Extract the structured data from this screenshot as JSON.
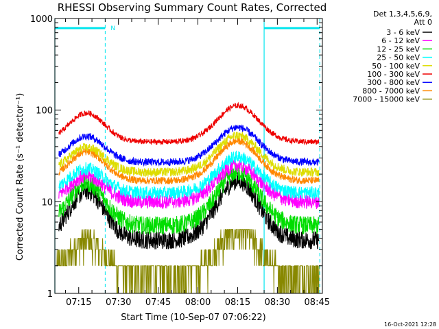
{
  "chart_data": {
    "type": "line",
    "title": "RHESSI Observing Summary Count Rates, Corrected",
    "ylabel": "Corrected Count Rate (s⁻¹ detector⁻¹)",
    "xlabel": "Start Time (10-Sep-07 07:06:22)",
    "timestamp": "16-Oct-2021 12:28",
    "y_scale": "log",
    "ylim": [
      1,
      1000
    ],
    "xlim": [
      "07:06",
      "08:47"
    ],
    "y_ticks": [
      {
        "label": "1",
        "value": 1
      },
      {
        "label": "10",
        "value": 10
      },
      {
        "label": "100",
        "value": 100
      },
      {
        "label": "1000",
        "value": 1000
      }
    ],
    "x_ticks": [
      {
        "label": "07:15",
        "value": "07:15"
      },
      {
        "label": "07:30",
        "value": "07:30"
      },
      {
        "label": "07:45",
        "value": "07:45"
      },
      {
        "label": "08:00",
        "value": "08:00"
      },
      {
        "label": "08:15",
        "value": "08:15"
      },
      {
        "label": "08:30",
        "value": "08:30"
      },
      {
        "label": "08:45",
        "value": "08:45"
      }
    ],
    "legend_header": [
      "Det 1,3,4,5,6,9,",
      "Att 0"
    ],
    "legend_placement": "right",
    "flags": {
      "color": "#00e5ee",
      "night_bars": [
        {
          "start": "07:06",
          "end": "07:25"
        },
        {
          "start": "08:25",
          "end": "08:46"
        }
      ],
      "dashed_lines": [
        "07:25",
        "08:46"
      ],
      "solid_lines": [
        "07:06",
        "08:25"
      ],
      "marker": {
        "label": "N",
        "time": "07:25"
      }
    },
    "series": [
      {
        "name": "3 - 6 keV",
        "color": "#000000",
        "base": 3.8,
        "peaks": [
          13,
          17
        ],
        "noise": 0.1
      },
      {
        "name": "6 - 12 keV",
        "color": "#ff00ff",
        "base": 10,
        "peaks": [
          19,
          25
        ],
        "noise": 0.08
      },
      {
        "name": "12 - 25 keV",
        "color": "#00dd00",
        "base": 5.5,
        "peaks": [
          16,
          21
        ],
        "noise": 0.1
      },
      {
        "name": "25 - 50 keV",
        "color": "#00ffff",
        "base": 12.5,
        "peaks": [
          23,
          31
        ],
        "noise": 0.07
      },
      {
        "name": "50 - 100 keV",
        "color": "#dddd00",
        "base": 21,
        "peaks": [
          39,
          53
        ],
        "noise": 0.05
      },
      {
        "name": "100 - 300 keV",
        "color": "#ee0000",
        "base": 45,
        "peaks": [
          93,
          112
        ],
        "noise": 0.03
      },
      {
        "name": "300 - 800 keV",
        "color": "#0000ff",
        "base": 27,
        "peaks": [
          52,
          65
        ],
        "noise": 0.04
      },
      {
        "name": "800 - 7000 keV",
        "color": "#ff8800",
        "base": 17,
        "peaks": [
          35,
          46
        ],
        "noise": 0.04
      },
      {
        "name": "7000 - 15000 keV",
        "color": "#888800",
        "base": 1.5,
        "peaks": [
          3.7,
          4.8
        ],
        "noise": 0.0
      }
    ],
    "peak_times": [
      "07:18",
      "08:15"
    ],
    "night_level_times": [
      {
        "start": "07:06",
        "end": "07:25"
      },
      {
        "start": "08:25",
        "end": "08:46"
      }
    ],
    "colors": {
      "background": "#ffffff",
      "axes": "#000000"
    }
  }
}
